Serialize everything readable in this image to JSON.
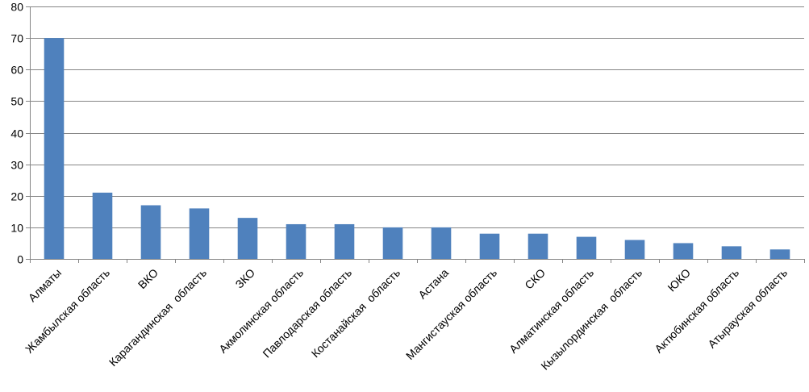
{
  "chart_data": {
    "type": "bar",
    "categories": [
      "Алматы",
      "Жамбылская область",
      "ВКО",
      "Карагандинская  область",
      "ЗКО",
      "Акмолинская область",
      "Павлодарская область",
      "Костанайская  область",
      "Астана",
      "Мангистауская область",
      "СКО",
      "Алматинская область",
      "Кызылординская  область",
      "ЮКО",
      "Актюбинская область",
      "Атырауская область"
    ],
    "values": [
      70,
      21,
      17,
      16,
      13,
      11,
      11,
      10,
      10,
      8,
      8,
      7,
      6,
      5,
      4,
      3
    ],
    "ylim": [
      0,
      80
    ],
    "yticks": [
      0,
      10,
      20,
      30,
      40,
      50,
      60,
      70,
      80
    ],
    "grid": true,
    "legend": "none",
    "colors": {
      "bar": "#4F81BD",
      "grid": "#868686",
      "axis": "#868686"
    }
  }
}
